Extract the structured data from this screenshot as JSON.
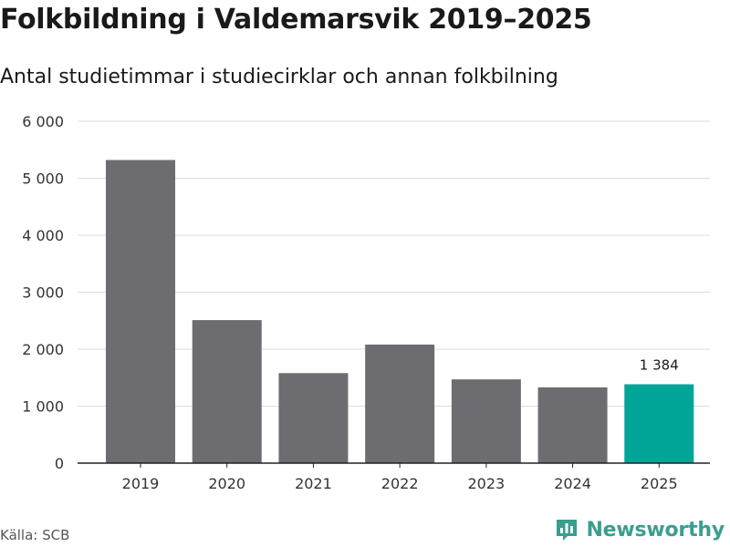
{
  "header": {
    "title": "Folkbildning i Valdemarsvik 2019–2025",
    "subtitle": "Antal studietimmar i studiecirklar och annan folkbilning"
  },
  "footer": {
    "source": "Källa: SCB",
    "brand": "Newsworthy"
  },
  "colors": {
    "bar": "#6d6c71",
    "highlight": "#00a598",
    "grid": "#dedede",
    "axis": "#222222",
    "brand": "#3a9e8f"
  },
  "chart_data": {
    "type": "bar",
    "categories": [
      "2019",
      "2020",
      "2021",
      "2022",
      "2023",
      "2024",
      "2025"
    ],
    "values": [
      5320,
      2510,
      1580,
      2080,
      1470,
      1330,
      1384
    ],
    "highlight_index": 6,
    "data_labels": [
      {
        "index": 6,
        "text": "1 384"
      }
    ],
    "ylim": [
      0,
      6000
    ],
    "yticks": [
      0,
      1000,
      2000,
      3000,
      4000,
      5000,
      6000
    ],
    "ytick_labels": [
      "0",
      "1 000",
      "2 000",
      "3 000",
      "4 000",
      "5 000",
      "6 000"
    ],
    "grid": true,
    "legend": "none"
  }
}
